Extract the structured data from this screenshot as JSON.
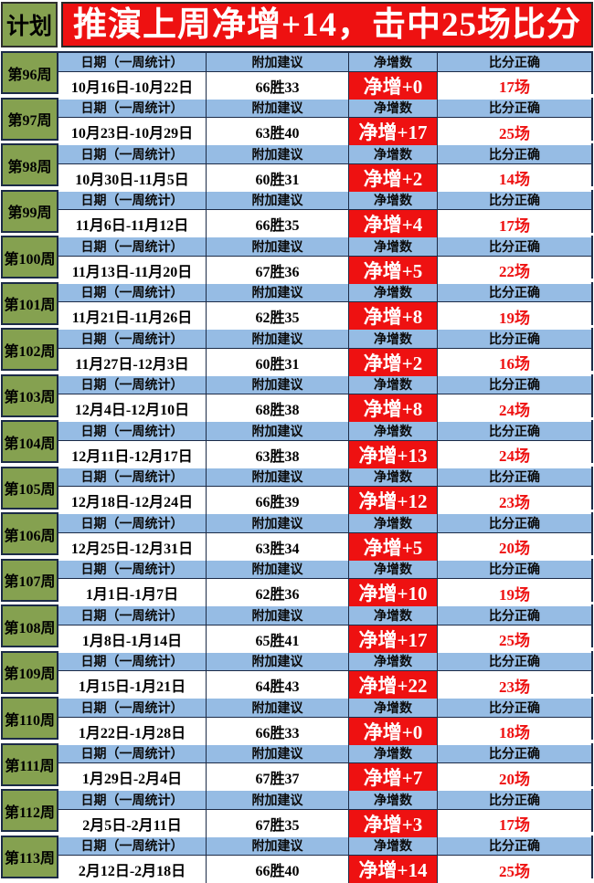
{
  "banner": {
    "plan_label": "计划",
    "title": "推演上周净增+14，击中25场比分"
  },
  "table": {
    "headers": {
      "date": "日期（一周统计）",
      "advice": "附加建议",
      "net": "净增数",
      "score": "比分正确"
    },
    "weeks": [
      {
        "week": "第96周",
        "date_range": "10月16日-10月22日",
        "record": "66胜33",
        "net": "净增+0",
        "score": "17场"
      },
      {
        "week": "第97周",
        "date_range": "10月23日-10月29日",
        "record": "63胜40",
        "net": "净增+17",
        "score": "25场"
      },
      {
        "week": "第98周",
        "date_range": "10月30日-11月5日",
        "record": "60胜31",
        "net": "净增+2",
        "score": "14场"
      },
      {
        "week": "第99周",
        "date_range": "11月6日-11月12日",
        "record": "66胜35",
        "net": "净增+4",
        "score": "17场"
      },
      {
        "week": "第100周",
        "date_range": "11月13日-11月20日",
        "record": "67胜36",
        "net": "净增+5",
        "score": "22场"
      },
      {
        "week": "第101周",
        "date_range": "11月21日-11月26日",
        "record": "62胜35",
        "net": "净增+8",
        "score": "19场"
      },
      {
        "week": "第102周",
        "date_range": "11月27日-12月3日",
        "record": "60胜31",
        "net": "净增+2",
        "score": "16场"
      },
      {
        "week": "第103周",
        "date_range": "12月4日-12月10日",
        "record": "68胜38",
        "net": "净增+8",
        "score": "24场"
      },
      {
        "week": "第104周",
        "date_range": "12月11日-12月17日",
        "record": "63胜38",
        "net": "净增+13",
        "score": "24场"
      },
      {
        "week": "第105周",
        "date_range": "12月18日-12月24日",
        "record": "66胜39",
        "net": "净增+12",
        "score": "23场"
      },
      {
        "week": "第106周",
        "date_range": "12月25日-12月31日",
        "record": "63胜34",
        "net": "净增+5",
        "score": "20场"
      },
      {
        "week": "第107周",
        "date_range": "1月1日-1月7日",
        "record": "62胜36",
        "net": "净增+10",
        "score": "19场"
      },
      {
        "week": "第108周",
        "date_range": "1月8日-1月14日",
        "record": "65胜41",
        "net": "净增+17",
        "score": "25场"
      },
      {
        "week": "第109周",
        "date_range": "1月15日-1月21日",
        "record": "64胜43",
        "net": "净增+22",
        "score": "23场"
      },
      {
        "week": "第110周",
        "date_range": "1月22日-1月28日",
        "record": "66胜33",
        "net": "净增+0",
        "score": "18场"
      },
      {
        "week": "第111周",
        "date_range": "1月29日-2月4日",
        "record": "67胜37",
        "net": "净增+7",
        "score": "20场"
      },
      {
        "week": "第112周",
        "date_range": "2月5日-2月11日",
        "record": "67胜35",
        "net": "净增+3",
        "score": "17场"
      },
      {
        "week": "第113周",
        "date_range": "2月12日-2月18日",
        "record": "66胜40",
        "net": "净增+14",
        "score": "25场"
      }
    ]
  },
  "colors": {
    "red": "#ee1111",
    "header_blue": "#96bce4",
    "week_green": "#85a150"
  }
}
